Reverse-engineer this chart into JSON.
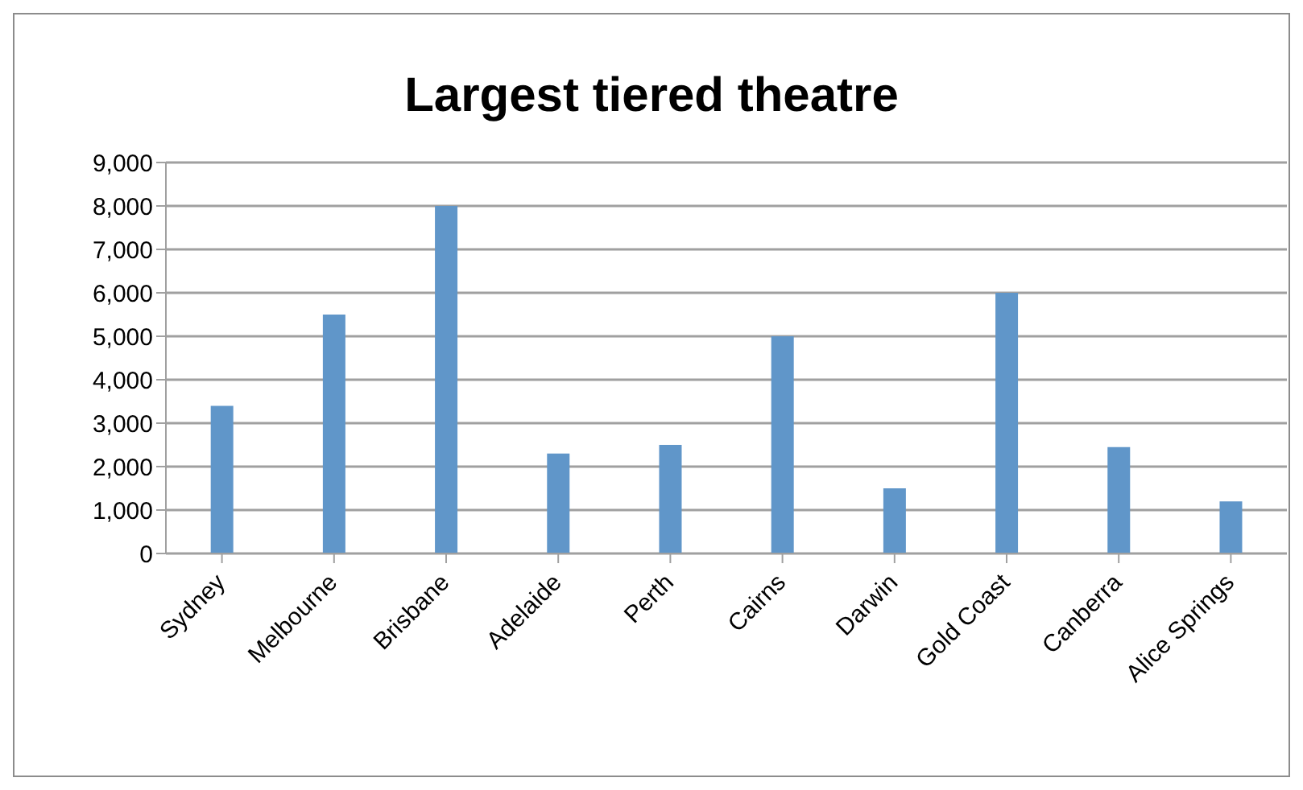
{
  "chart_data": {
    "type": "bar",
    "title": "Largest tiered theatre",
    "categories": [
      "Sydney",
      "Melbourne",
      "Brisbane",
      "Adelaide",
      "Perth",
      "Cairns",
      "Darwin",
      "Gold Coast",
      "Canberra",
      "Alice Springs"
    ],
    "values": [
      3400,
      5500,
      8000,
      2300,
      2500,
      5000,
      1500,
      6000,
      2450,
      1200
    ],
    "color": "#6096c9",
    "ylim": [
      0,
      9000
    ],
    "yticks": [
      {
        "value": 0,
        "label": "0"
      },
      {
        "value": 1000,
        "label": "1,000"
      },
      {
        "value": 2000,
        "label": "2,000"
      },
      {
        "value": 3000,
        "label": "3,000"
      },
      {
        "value": 4000,
        "label": "4,000"
      },
      {
        "value": 5000,
        "label": "5,000"
      },
      {
        "value": 6000,
        "label": "6,000"
      },
      {
        "value": 7000,
        "label": "7,000"
      },
      {
        "value": 8000,
        "label": "8,000"
      },
      {
        "value": 9000,
        "label": "9,000"
      }
    ],
    "grid": "y",
    "legend": false
  }
}
